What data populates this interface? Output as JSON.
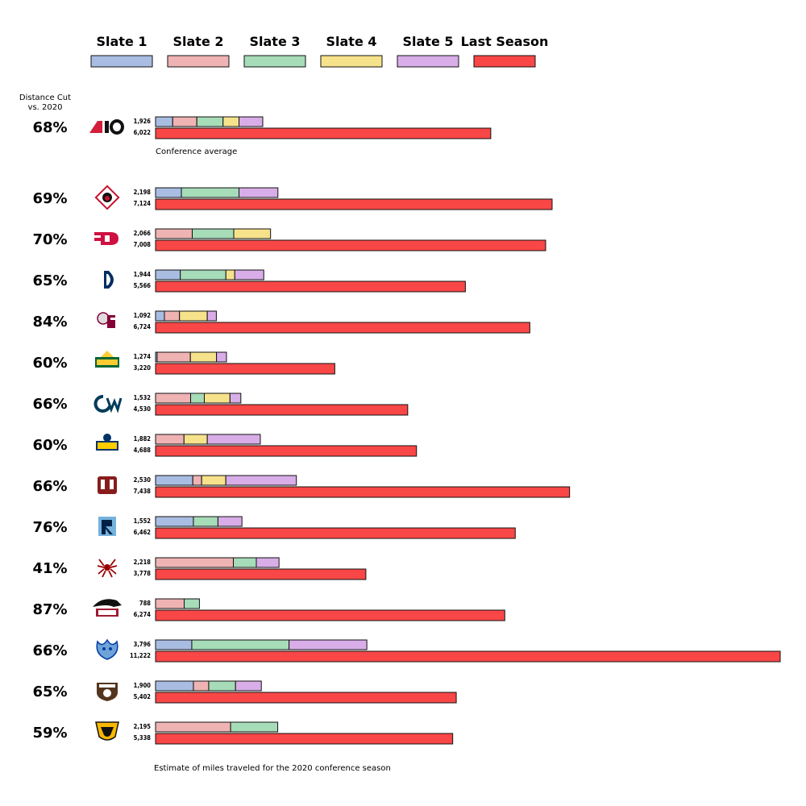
{
  "chart_data": {
    "type": "bar",
    "orientation": "horizontal",
    "stacked": true,
    "legend": [
      "Slate 1",
      "Slate 2",
      "Slate 3",
      "Slate 4",
      "Slate 5",
      "Last Season"
    ],
    "legend_placement": "top",
    "colors": {
      "Slate 1": "#a9bde3",
      "Slate 2": "#efb3b3",
      "Slate 3": "#a6dcb8",
      "Slate 4": "#f6e28b",
      "Slate 5": "#d8ade8",
      "Last Season": "#f94646"
    },
    "pct_header": "Distance Cut\nvs. 2020",
    "avg_caption": "Conference average",
    "footer": "Estimate of miles traveled for the 2020 conference season",
    "rows": [
      {
        "logo": "A10",
        "avg": true,
        "pct": "68%",
        "total_label": "1,926",
        "last_label": "6,022",
        "last": 6022,
        "segments": [
          [
            "Slate 1",
            308
          ],
          [
            "Slate 2",
            434
          ],
          [
            "Slate 3",
            471
          ],
          [
            "Slate 4",
            286
          ],
          [
            "Slate 5",
            427
          ]
        ]
      },
      {
        "logo": "Davidson",
        "pct": "69%",
        "total_label": "2,198",
        "last_label": "7,124",
        "last": 7124,
        "segments": [
          [
            "Slate 1",
            464
          ],
          [
            "Slate 3",
            1035
          ],
          [
            "Slate 5",
            699
          ]
        ]
      },
      {
        "logo": "Dayton",
        "pct": "70%",
        "total_label": "2,066",
        "last_label": "7,008",
        "last": 7008,
        "segments": [
          [
            "Slate 2",
            659
          ],
          [
            "Slate 3",
            746
          ],
          [
            "Slate 4",
            661
          ]
        ]
      },
      {
        "logo": "Duquesne",
        "pct": "65%",
        "total_label": "1,944",
        "last_label": "5,566",
        "last": 5566,
        "segments": [
          [
            "Slate 1",
            444
          ],
          [
            "Slate 3",
            820
          ],
          [
            "Slate 4",
            159
          ],
          [
            "Slate 5",
            521
          ]
        ]
      },
      {
        "logo": "Fordham",
        "pct": "84%",
        "total_label": "1,092",
        "last_label": "6,724",
        "last": 6724,
        "segments": [
          [
            "Slate 1",
            159
          ],
          [
            "Slate 2",
            271
          ],
          [
            "Slate 4",
            499
          ],
          [
            "Slate 5",
            163
          ]
        ]
      },
      {
        "logo": "George Mason",
        "pct": "60%",
        "total_label": "1,274",
        "last_label": "3,220",
        "last": 3220,
        "segments": [
          [
            "Slate 1",
            28
          ],
          [
            "Slate 2",
            598
          ],
          [
            "Slate 4",
            469
          ],
          [
            "Slate 5",
            179
          ]
        ]
      },
      {
        "logo": "George Washington",
        "pct": "66%",
        "total_label": "1,532",
        "last_label": "4,530",
        "last": 4530,
        "segments": [
          [
            "Slate 2",
            630
          ],
          [
            "Slate 3",
            246
          ],
          [
            "Slate 4",
            461
          ],
          [
            "Slate 5",
            195
          ]
        ]
      },
      {
        "logo": "La Salle",
        "pct": "60%",
        "total_label": "1,882",
        "last_label": "4,688",
        "last": 4688,
        "segments": [
          [
            "Slate 2",
            511
          ],
          [
            "Slate 4",
            418
          ],
          [
            "Slate 5",
            953
          ]
        ]
      },
      {
        "logo": "UMass",
        "pct": "66%",
        "total_label": "2,530",
        "last_label": "7,438",
        "last": 7438,
        "segments": [
          [
            "Slate 1",
            669
          ],
          [
            "Slate 2",
            159
          ],
          [
            "Slate 4",
            434
          ],
          [
            "Slate 5",
            1268
          ]
        ]
      },
      {
        "logo": "Rhode Island",
        "pct": "76%",
        "total_label": "1,552",
        "last_label": "6,462",
        "last": 6462,
        "segments": [
          [
            "Slate 1",
            680
          ],
          [
            "Slate 3",
            441
          ],
          [
            "Slate 5",
            431
          ]
        ]
      },
      {
        "logo": "Richmond",
        "pct": "41%",
        "total_label": "2,218",
        "last_label": "3,778",
        "last": 3778,
        "segments": [
          [
            "Slate 2",
            1398
          ],
          [
            "Slate 3",
            412
          ],
          [
            "Slate 5",
            408
          ]
        ]
      },
      {
        "logo": "Saint Joseph's",
        "pct": "87%",
        "total_label": "788",
        "last_label": "6,274",
        "last": 6274,
        "segments": [
          [
            "Slate 2",
            514
          ],
          [
            "Slate 3",
            274
          ]
        ]
      },
      {
        "logo": "Saint Louis",
        "pct": "66%",
        "total_label": "3,796",
        "last_label": "11,222",
        "last": 11222,
        "segments": [
          [
            "Slate 1",
            651
          ],
          [
            "Slate 3",
            1747
          ],
          [
            "Slate 5",
            1398
          ]
        ]
      },
      {
        "logo": "St. Bonaventure",
        "pct": "65%",
        "total_label": "1,900",
        "last_label": "5,402",
        "last": 5402,
        "segments": [
          [
            "Slate 1",
            680
          ],
          [
            "Slate 2",
            275
          ],
          [
            "Slate 3",
            482
          ],
          [
            "Slate 5",
            463
          ]
        ]
      },
      {
        "logo": "VCU",
        "pct": "59%",
        "total_label": "2,195",
        "last_label": "5,338",
        "last": 5338,
        "segments": [
          [
            "Slate 2",
            1348
          ],
          [
            "Slate 3",
            847
          ]
        ]
      }
    ]
  }
}
